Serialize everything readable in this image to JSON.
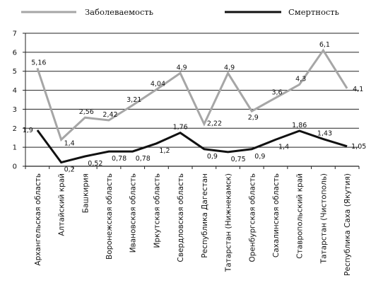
{
  "chart_data": {
    "type": "line",
    "categories": [
      "Архангельская  область",
      "Алтайский край",
      "Башкирия",
      "Воронежская  область",
      "Ивановская  область",
      "Иркутская  область",
      "Свердловская  область",
      "Республика Дагестан",
      "Татарстан (Нижнекамск)",
      "Оренбургская  область",
      "Сахалинская область",
      "Ставропольский край",
      "Татарстан (Чистополь)",
      "Республика Саха (Якутия)"
    ],
    "series": [
      {
        "name": "Заболеваемость",
        "color": "#a6a6a6",
        "values": [
          5.16,
          1.4,
          2.56,
          2.42,
          3.21,
          4.04,
          4.9,
          2.22,
          4.9,
          2.9,
          3.6,
          4.3,
          6.1,
          4.1
        ],
        "labels": [
          "5,16",
          "1,4",
          "2,56",
          "2,42",
          "3,21",
          "4,04",
          "4,9",
          "2,22",
          "4,9",
          "2,9",
          "3,6",
          "4,3",
          "6,1",
          "4,1"
        ]
      },
      {
        "name": "Смертность",
        "color": "#111111",
        "values": [
          1.9,
          0.2,
          0.52,
          0.78,
          0.78,
          1.2,
          1.76,
          0.9,
          0.75,
          0.9,
          1.4,
          1.86,
          1.43,
          1.05
        ],
        "labels": [
          "1,9",
          "0,2",
          "0,52",
          "0,78",
          "0,78",
          "1,2",
          "1,76",
          "0,9",
          "0,75",
          "0,9",
          "1,4",
          "1,86",
          "1,43",
          "1,05"
        ]
      }
    ],
    "y_ticks": [
      "0",
      "1",
      "2",
      "3",
      "4",
      "5",
      "6",
      "7"
    ],
    "ylim": [
      0,
      7
    ],
    "grid": "horizontal",
    "legend": "top"
  }
}
